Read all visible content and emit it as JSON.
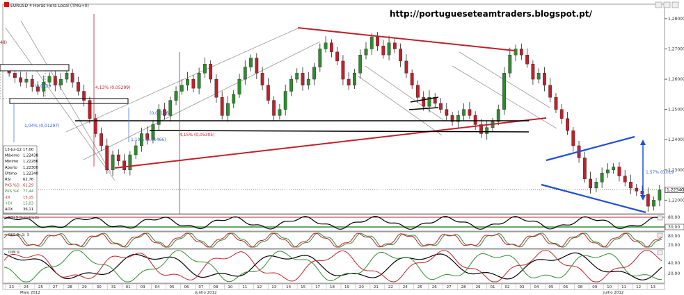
{
  "window": {
    "title": "EURUSD 4 Horas Hora Local (TMG+0)",
    "url_watermark": "http://portugueseteamtraders.blogspot.pt/"
  },
  "info_box": {
    "rows": [
      {
        "label": "13-Jul-12",
        "value": "17:00"
      },
      {
        "label": "Máximo",
        "value": "1,22438"
      },
      {
        "label": "Mínimo",
        "value": "1,22286"
      },
      {
        "label": "Aberto",
        "value": "1,22300"
      },
      {
        "label": "Último",
        "value": "1,22340"
      },
      {
        "label": "RSI",
        "value": "62,76"
      },
      {
        "label": "PKS %D",
        "value": "61,29"
      },
      {
        "label": "PKS %K",
        "value": "77,44"
      },
      {
        "label": "-DI",
        "value": "15,15"
      },
      {
        "label": "+DI",
        "value": "15,03"
      },
      {
        "label": "ADX",
        "value": "36,11"
      }
    ]
  },
  "annotations": {
    "fib_left_top": "4,13% (0,05299)",
    "fib_left_mid": "1,04% (0,01297)",
    "fib_left_small": "1,10% (0,01466)",
    "fib_left_small2": "(0,01166)",
    "fib_center": "4,15% (0,05305)",
    "fib_right": "1,57% (0,019",
    "left_edge": "48)",
    "box_val_1": "(0,0129"
  },
  "panels": {
    "rsi_label": "RSI 9 Suavizado",
    "stoch_label": "PKS 5; 1; 3",
    "dmi_label": "DMI 9"
  },
  "chart_data": {
    "type": "candlestick",
    "symbol": "EURUSD",
    "timeframe": "4 Horas",
    "price_axis": {
      "ticks": [
        "1,28000",
        "1,27000",
        "1,26000",
        "1,25000",
        "1,24000",
        "1,23000",
        "1,22000"
      ],
      "last_price": "1,22340",
      "range": [
        1.2155,
        1.2848
      ]
    },
    "rsi_axis": {
      "ticks": [
        "80,00",
        "30,00"
      ]
    },
    "stoch_axis": {
      "ticks": [
        "80,00",
        "20,00"
      ]
    },
    "dmi_axis": {
      "ticks": [
        "40,00",
        "20,00"
      ]
    },
    "x_day_labels": [
      "23",
      "24",
      "25",
      "27",
      "28",
      "29",
      "30",
      "31",
      "01",
      "03",
      "04",
      "05",
      "06",
      "07",
      "08",
      "10",
      "11",
      "12",
      "13",
      "14",
      "15",
      "17",
      "18",
      "19",
      "20",
      "21",
      "22",
      "24",
      "25",
      "26",
      "27",
      "28",
      "29",
      "01",
      "02",
      "03",
      "04",
      "05",
      "06",
      "08",
      "09",
      "10",
      "11",
      "12",
      "13"
    ],
    "month_labels": [
      {
        "label": "Maio 2012",
        "at_day_index": 1
      },
      {
        "label": "Junho 2012",
        "at_day_index": 13
      },
      {
        "label": "Julho 2012",
        "at_day_index": 41
      }
    ],
    "closes": [
      1.262,
      1.2605,
      1.259,
      1.26,
      1.2575,
      1.256,
      1.259,
      1.261,
      1.258,
      1.26,
      1.262,
      1.259,
      1.256,
      1.253,
      1.247,
      1.242,
      1.238,
      1.23,
      1.235,
      1.233,
      1.23,
      1.235,
      1.238,
      1.242,
      1.24,
      1.245,
      1.25,
      1.248,
      1.253,
      1.256,
      1.258,
      1.26,
      1.257,
      1.262,
      1.265,
      1.26,
      1.254,
      1.248,
      1.252,
      1.255,
      1.26,
      1.264,
      1.267,
      1.262,
      1.258,
      1.253,
      1.248,
      1.25,
      1.256,
      1.26,
      1.262,
      1.258,
      1.26,
      1.264,
      1.27,
      1.272,
      1.269,
      1.266,
      1.26,
      1.258,
      1.262,
      1.268,
      1.27,
      1.274,
      1.271,
      1.268,
      1.272,
      1.27,
      1.266,
      1.262,
      1.258,
      1.254,
      1.251,
      1.254,
      1.252,
      1.25,
      1.248,
      1.246,
      1.248,
      1.25,
      1.248,
      1.245,
      1.242,
      1.244,
      1.246,
      1.25,
      1.262,
      1.268,
      1.27,
      1.268,
      1.265,
      1.26,
      1.262,
      1.258,
      1.254,
      1.25,
      1.247,
      1.243,
      1.238,
      1.234,
      1.227,
      1.224,
      1.226,
      1.229,
      1.23,
      1.231,
      1.228,
      1.226,
      1.224,
      1.223,
      1.222,
      1.218,
      1.22,
      1.2234
    ]
  }
}
